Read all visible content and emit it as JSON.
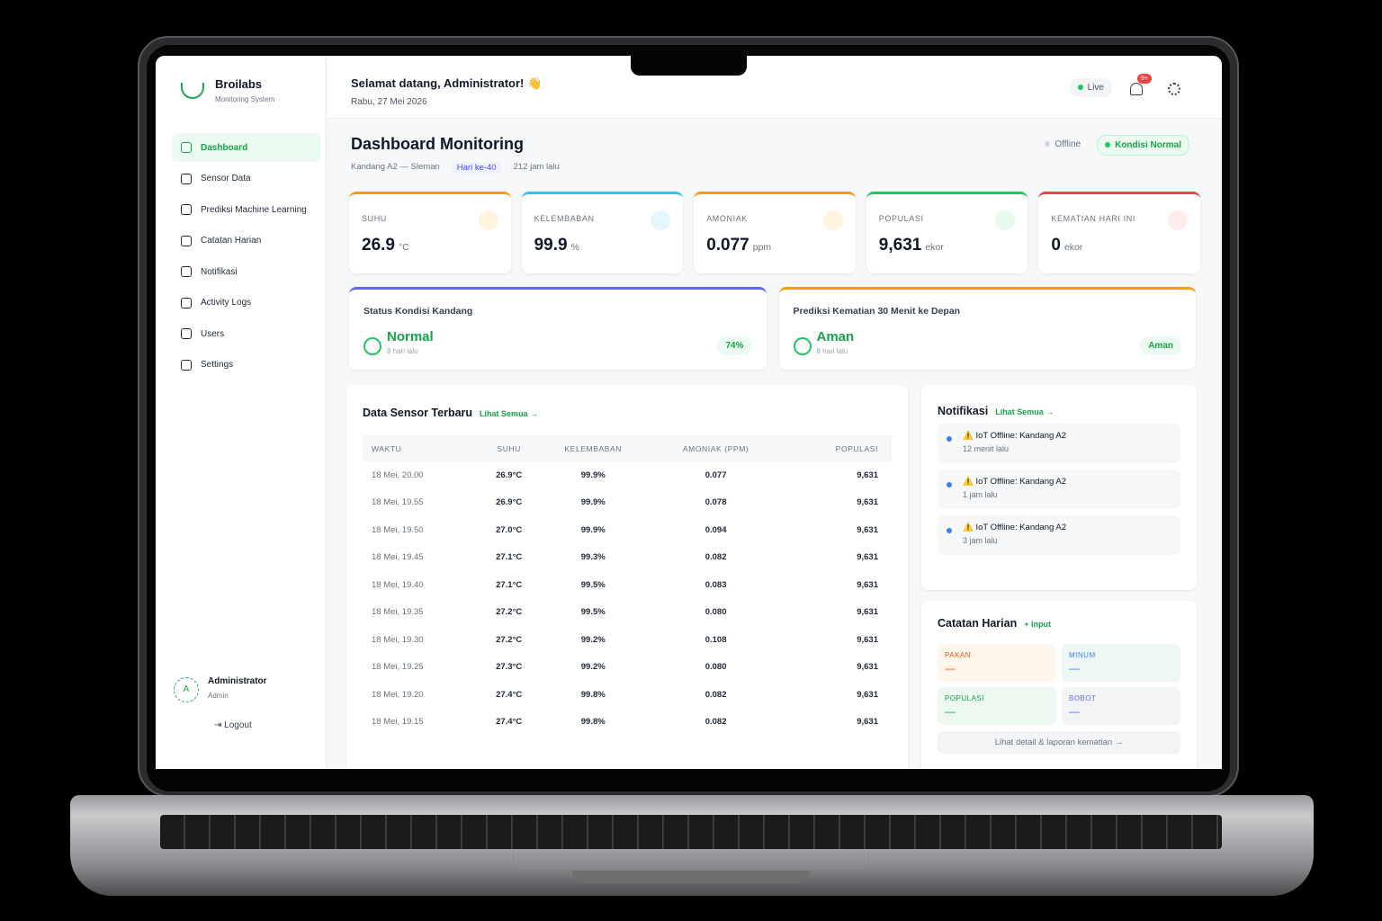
{
  "sidebar": {
    "brand": "Broilabs",
    "tagline": "Monitoring System",
    "nav": [
      "Dashboard",
      "Sensor Data",
      "Prediksi Machine Learning",
      "Catatan Harian",
      "Notifikasi",
      "Activity Logs",
      "Users",
      "Settings"
    ],
    "user": {
      "avatar": "A",
      "name": "Administrator",
      "role": "Admin"
    },
    "logout": "Logout"
  },
  "header": {
    "greeting": "Selamat datang, Administrator! 👋",
    "date": "Rabu, 27 Mei 2026",
    "live": "Live",
    "badge": "9+"
  },
  "page": {
    "title": "Dashboard Monitoring",
    "location": "Kandang A2 — Sleman",
    "day": "Hari ke-40",
    "updated": "212 jam lalu",
    "offline": "Offline",
    "condition": "Kondisi Normal"
  },
  "stats": [
    {
      "label": "SUHU",
      "value": "26.9",
      "unit": "°C"
    },
    {
      "label": "KELEMBABAN",
      "value": "99.9",
      "unit": "%"
    },
    {
      "label": "AMONIAK",
      "value": "0.077",
      "unit": "ppm"
    },
    {
      "label": "POPULASI",
      "value": "9,631",
      "unit": "ekor"
    },
    {
      "label": "KEMATIAN HARI INI",
      "value": "0",
      "unit": "ekor"
    }
  ],
  "status_cards": [
    {
      "title": "Status Kondisi Kandang",
      "status": "Normal",
      "time": "8 hari lalu",
      "badge": "74%"
    },
    {
      "title": "Prediksi Kematian 30 Menit ke Depan",
      "status": "Aman",
      "time": "8 hari lalu",
      "badge": "Aman"
    }
  ],
  "sensor_table": {
    "title": "Data Sensor Terbaru",
    "link": "Lihat Semua →",
    "columns": [
      "WAKTU",
      "SUHU",
      "KELEMBABAN",
      "AMONIAK (PPM)",
      "POPULASI"
    ],
    "rows": [
      [
        "18 Mei, 20.00",
        "26.9°C",
        "99.9%",
        "0.077",
        "9,631"
      ],
      [
        "18 Mei, 19.55",
        "26.9°C",
        "99.9%",
        "0.078",
        "9,631"
      ],
      [
        "18 Mei, 19.50",
        "27.0°C",
        "99.9%",
        "0.094",
        "9,631"
      ],
      [
        "18 Mei, 19.45",
        "27.1°C",
        "99.3%",
        "0.082",
        "9,631"
      ],
      [
        "18 Mei, 19.40",
        "27.1°C",
        "99.5%",
        "0.083",
        "9,631"
      ],
      [
        "18 Mei, 19.35",
        "27.2°C",
        "99.5%",
        "0.080",
        "9,631"
      ],
      [
        "18 Mei, 19.30",
        "27.2°C",
        "99.2%",
        "0.108",
        "9,631"
      ],
      [
        "18 Mei, 19.25",
        "27.3°C",
        "99.2%",
        "0.080",
        "9,631"
      ],
      [
        "18 Mei, 19.20",
        "27.4°C",
        "99.8%",
        "0.082",
        "9,631"
      ],
      [
        "18 Mei, 19.15",
        "27.4°C",
        "99.8%",
        "0.082",
        "9,631"
      ]
    ]
  },
  "notifications": {
    "title": "Notifikasi",
    "link": "Lihat Semua →",
    "items": [
      {
        "title": "⚠️ IoT Offline: Kandang A2",
        "time": "12 menit lalu"
      },
      {
        "title": "⚠️ IoT Offline: Kandang A2",
        "time": "1 jam lalu"
      },
      {
        "title": "⚠️ IoT Offline: Kandang A2",
        "time": "3 jam lalu"
      }
    ]
  },
  "daily_notes": {
    "title": "Catatan Harian",
    "action": "+ Input",
    "fields": [
      {
        "label": "PAKAN",
        "value": "—"
      },
      {
        "label": "MINUM",
        "value": "—"
      },
      {
        "label": "POPULASI",
        "value": "—"
      },
      {
        "label": "BOBOT",
        "value": "—"
      }
    ],
    "footer": "Lihat detail & laporan kematian →"
  }
}
